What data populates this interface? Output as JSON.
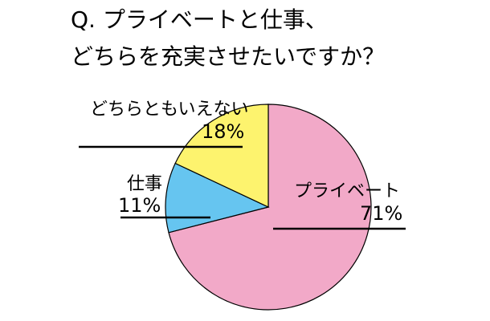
{
  "chart_data": {
    "type": "pie",
    "title_lines": [
      "Q. プライベートと仕事、",
      "どちらを充実させたいですか？"
    ],
    "slices": [
      {
        "label": "プライベート",
        "value": 71,
        "value_label": "71%",
        "color": "#f2a9c8"
      },
      {
        "label": "仕事",
        "value": 11,
        "value_label": "11%",
        "color": "#66c5f0"
      },
      {
        "label": "どちらともいえない",
        "value": 18,
        "value_label": "18%",
        "color": "#fdf36e"
      }
    ]
  }
}
